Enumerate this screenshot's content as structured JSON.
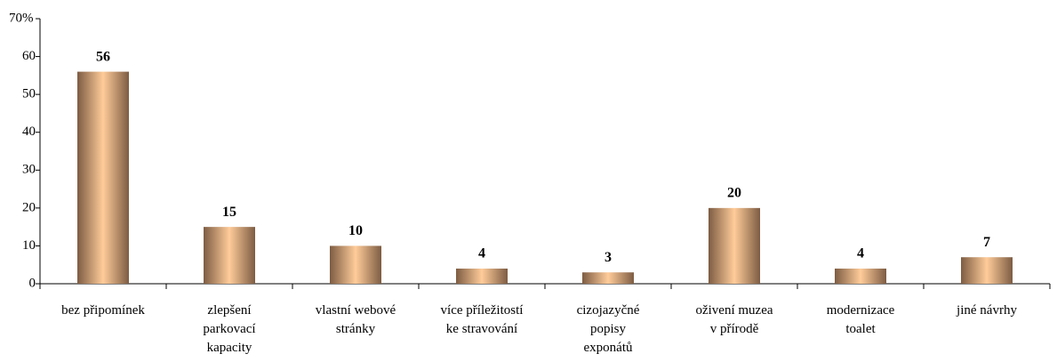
{
  "chart_data": {
    "type": "bar",
    "categories": [
      "bez připomínek",
      "zlepšení\nparkovací\nkapacity",
      "vlastní webové\nstránky",
      "více příležitostí\nke stravování",
      "cizojazyčné\npopisy\nexponátů",
      "oživení muzea\nv přírodě",
      "modernizace\ntoalet",
      "jiné návrhy"
    ],
    "values": [
      56,
      15,
      10,
      4,
      3,
      20,
      4,
      7
    ],
    "ylim": [
      0,
      70
    ],
    "yticks": [
      0,
      10,
      20,
      30,
      40,
      50,
      60,
      {
        "value": 70,
        "label": "70%"
      }
    ],
    "grid": false
  }
}
